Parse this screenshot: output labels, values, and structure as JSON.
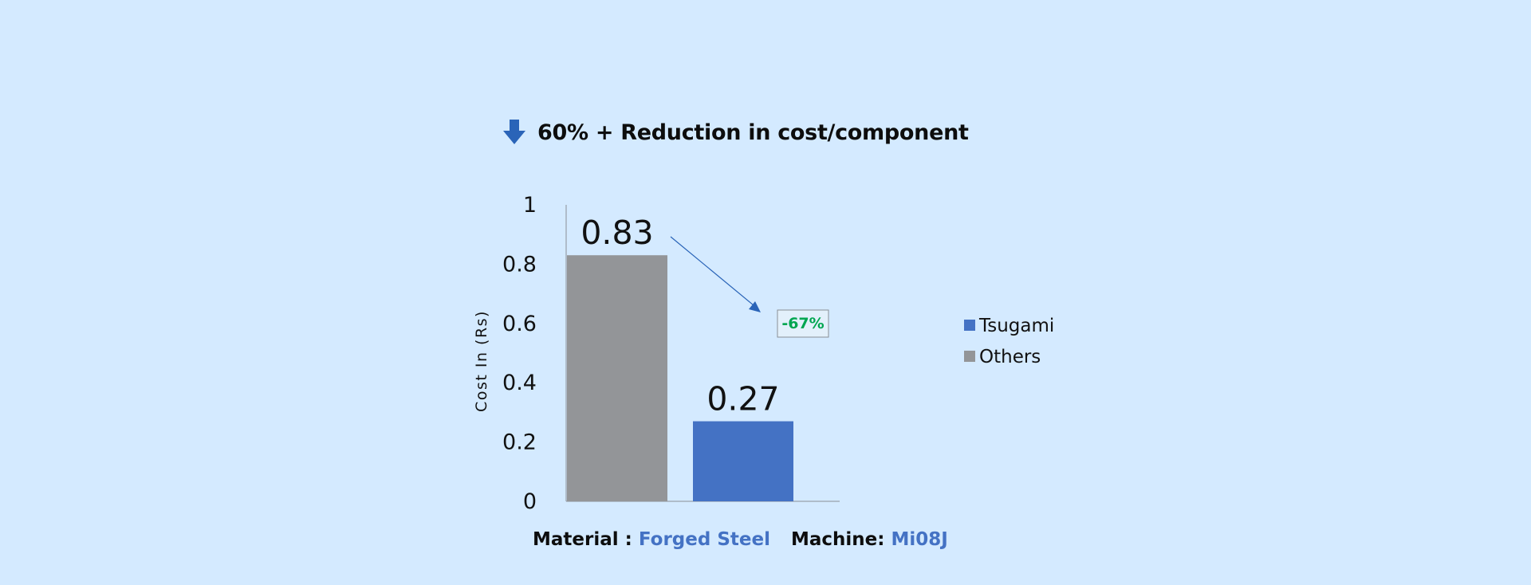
{
  "headline": {
    "text": "60% + Reduction in cost/component",
    "icon": "arrow-down-icon"
  },
  "chart_data": {
    "type": "bar",
    "categories": [
      "Others",
      "Tsugami"
    ],
    "values": [
      0.83,
      0.27
    ],
    "data_labels": [
      "0.83",
      "0.27"
    ],
    "colors": [
      "#939598",
      "#4472c4"
    ],
    "ylabel": "Cost In (Rs)",
    "ylim": [
      0,
      1
    ],
    "y_ticks": [
      0,
      0.2,
      0.4,
      0.6,
      0.8,
      1
    ],
    "y_tick_labels": [
      "0",
      "0.2",
      "0.4",
      "0.6",
      "0.8",
      "1"
    ],
    "grid": false,
    "legend": {
      "position": "right",
      "entries": [
        {
          "name": "Tsugami",
          "color": "#4472c4"
        },
        {
          "name": "Others",
          "color": "#939598"
        }
      ]
    },
    "annotation": {
      "text": "-67%",
      "color": "#00a650"
    }
  },
  "footer": {
    "material_label": "Material :",
    "material_value": "Forged Steel",
    "machine_label": "Machine:",
    "machine_value": "Mi08J"
  }
}
